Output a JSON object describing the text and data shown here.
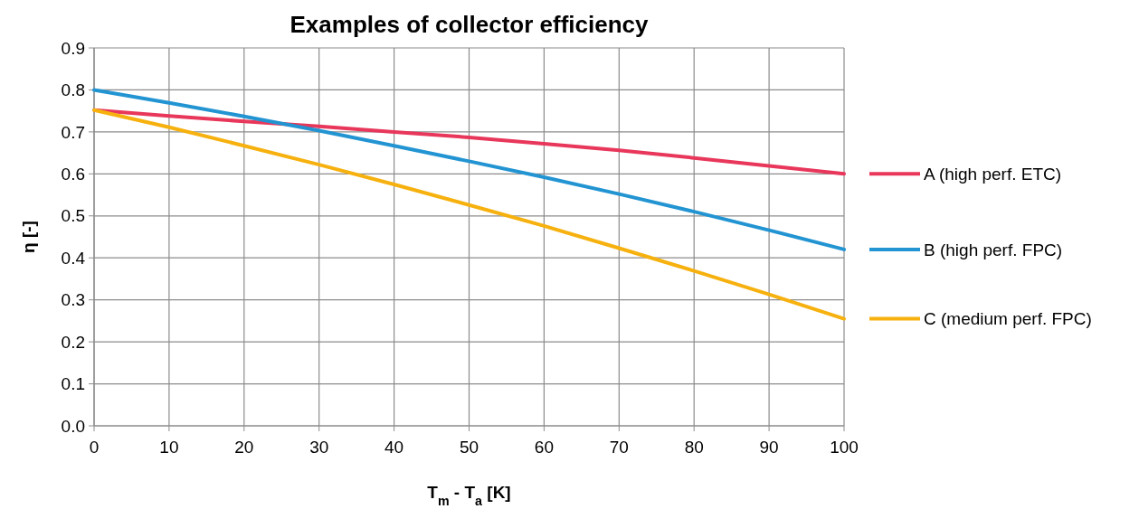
{
  "chart_data": {
    "type": "line",
    "title": "Examples of collector efficiency",
    "xlabel": "T$_{m}$ - T$_{a}$ [K]",
    "ylabel": "η [-]",
    "x": [
      0,
      10,
      20,
      30,
      40,
      50,
      60,
      70,
      80,
      90,
      100
    ],
    "series": [
      {
        "name": "A (high perf. ETC)",
        "color": "#e8375a",
        "values": [
          0.752,
          0.738,
          0.725,
          0.713,
          0.7,
          0.687,
          0.672,
          0.656,
          0.638,
          0.619,
          0.6
        ]
      },
      {
        "name": "B (high perf. FPC)",
        "color": "#2394d2",
        "values": [
          0.8,
          0.769,
          0.737,
          0.703,
          0.667,
          0.63,
          0.592,
          0.552,
          0.51,
          0.466,
          0.42
        ]
      },
      {
        "name": "C (medium perf. FPC)",
        "color": "#f6b10f",
        "values": [
          0.752,
          0.711,
          0.667,
          0.622,
          0.575,
          0.526,
          0.476,
          0.423,
          0.369,
          0.313,
          0.255
        ]
      }
    ],
    "xlim": [
      0,
      100
    ],
    "xticks": [
      0,
      10,
      20,
      30,
      40,
      50,
      60,
      70,
      80,
      90,
      100
    ],
    "ylim": [
      0,
      0.9
    ],
    "yticks": [
      {
        "value": 0,
        "label": "0.0"
      },
      0.1,
      0.2,
      0.3,
      0.4,
      0.5,
      0.6,
      0.7,
      0.8,
      0.9
    ],
    "grid": true,
    "legend": "right",
    "marker": "none",
    "line_style": "solid"
  }
}
